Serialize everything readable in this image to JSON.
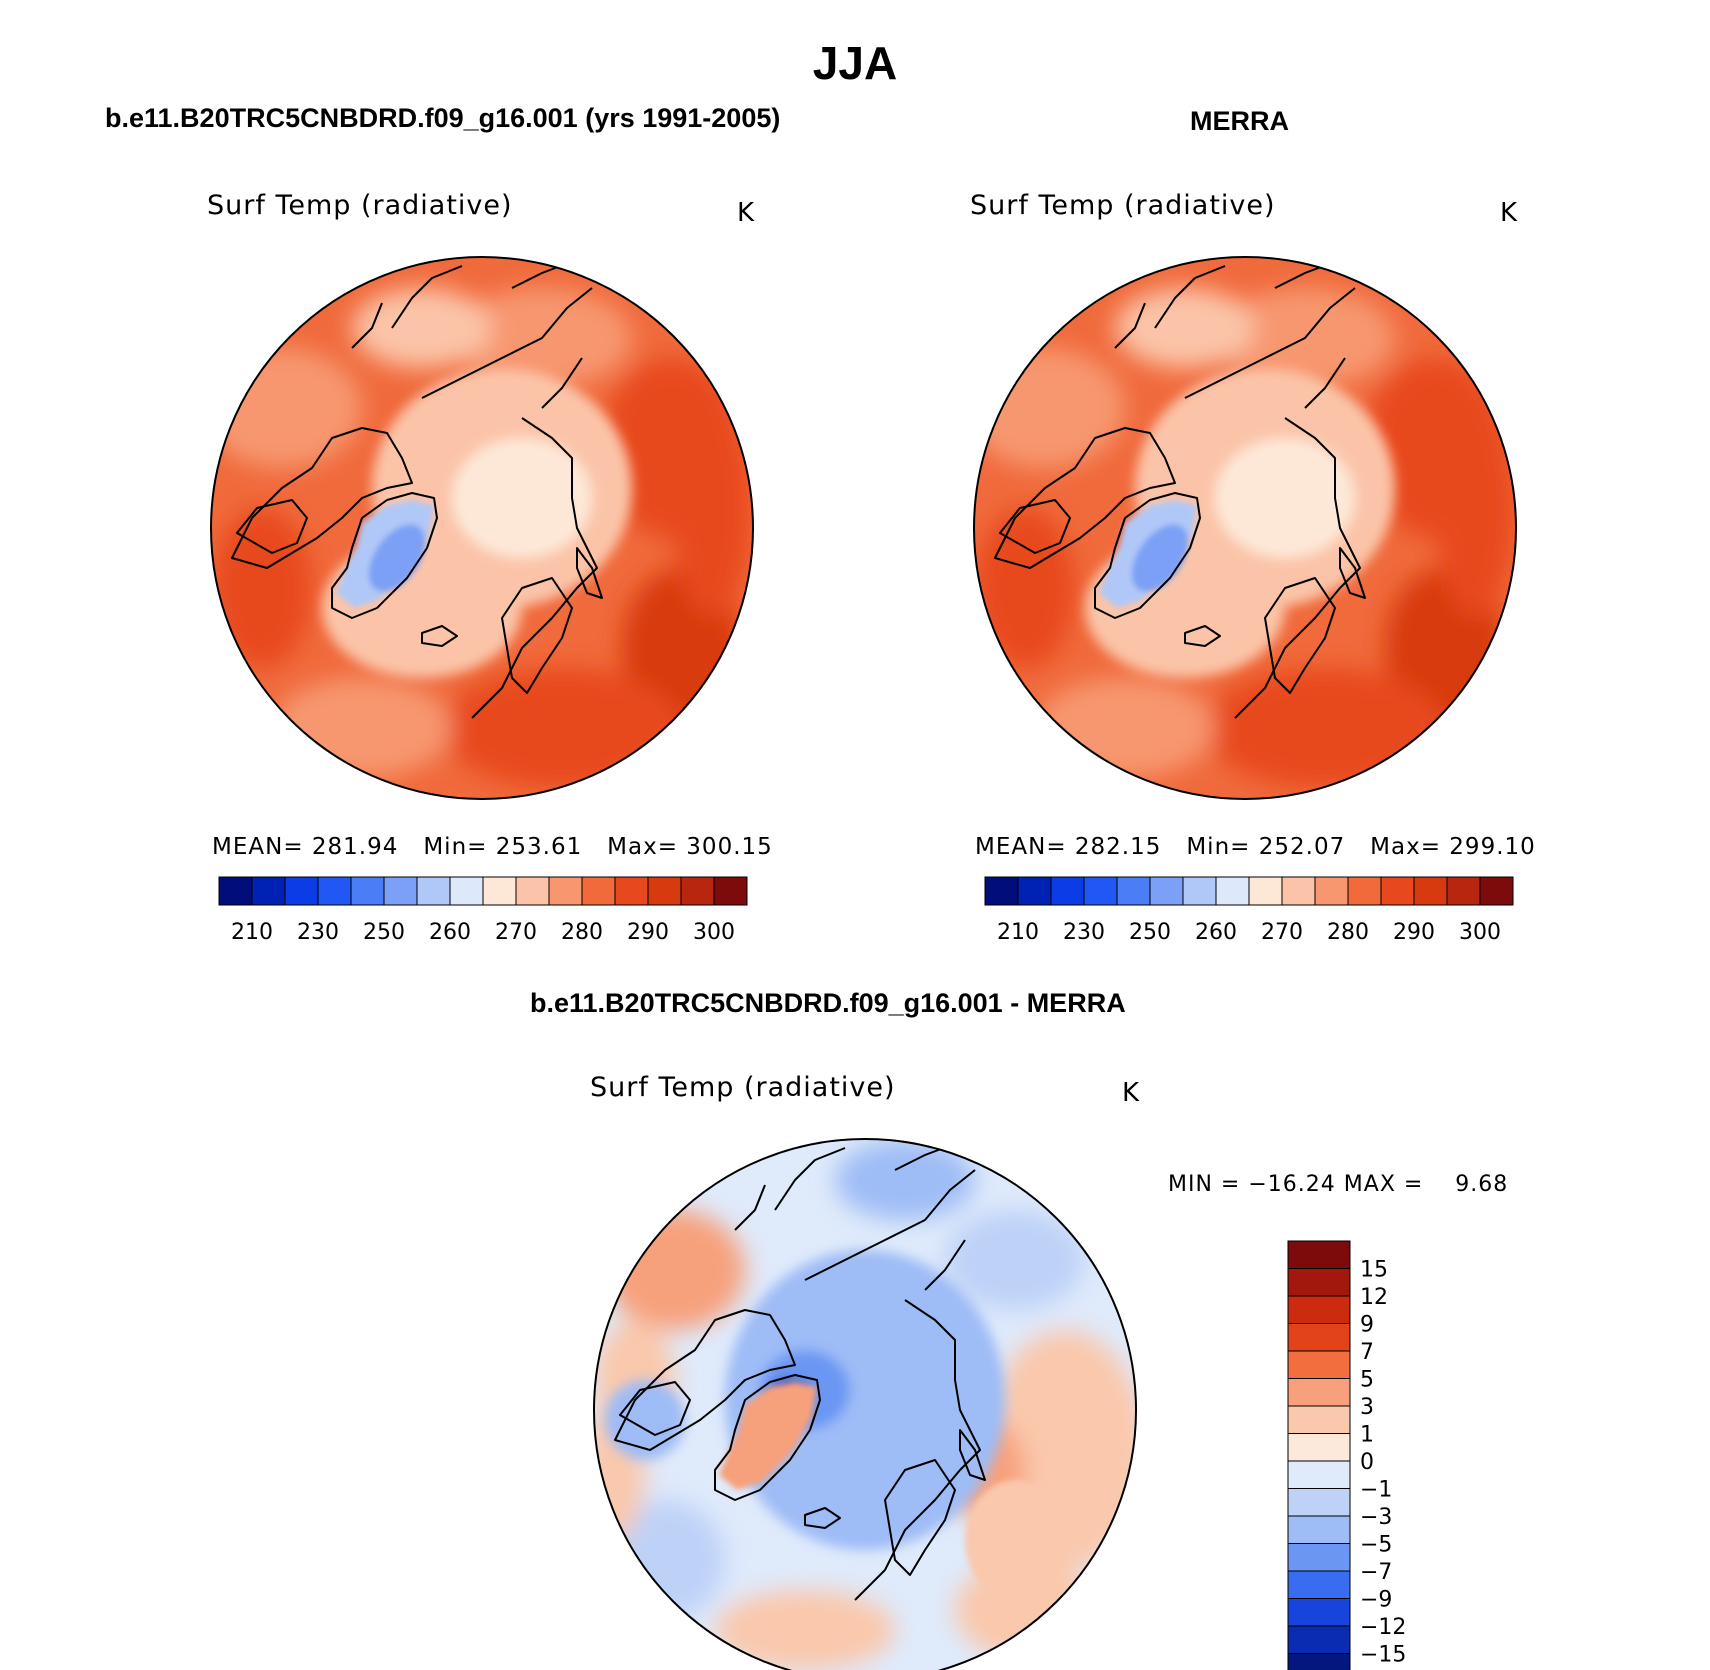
{
  "season": "JJA",
  "panels": [
    {
      "heading": "b.e11.B20TRC5CNBDRD.f09_g16.001 (yrs 1991-2005)",
      "variable": "Surf Temp (radiative)",
      "units": "K",
      "stats": {
        "mean_label": "MEAN=",
        "mean": "281.94",
        "min_label": "Min=",
        "min": "253.61",
        "max_label": "Max=",
        "max": "300.15"
      },
      "colorbar_ticks": [
        "210",
        "230",
        "250",
        "260",
        "270",
        "280",
        "290",
        "300"
      ]
    },
    {
      "heading": "MERRA",
      "variable": "Surf Temp (radiative)",
      "units": "K",
      "stats": {
        "mean_label": "MEAN=",
        "mean": "282.15",
        "min_label": "Min=",
        "min": "252.07",
        "max_label": "Max=",
        "max": "299.10"
      },
      "colorbar_ticks": [
        "210",
        "230",
        "250",
        "260",
        "270",
        "280",
        "290",
        "300"
      ]
    }
  ],
  "diff": {
    "heading": "b.e11.B20TRC5CNBDRD.f09_g16.001 - MERRA",
    "variable": "Surf Temp (radiative)",
    "units": "K",
    "min_label": "MIN =",
    "min": "−16.24",
    "max_label": "MAX =",
    "max": "9.68",
    "colorbar_ticks": [
      "15",
      "12",
      "9",
      "7",
      "5",
      "3",
      "1",
      "0",
      "−1",
      "−3",
      "−5",
      "−7",
      "−9",
      "−12",
      "−15"
    ]
  },
  "colors": {
    "abs_scale": [
      "#000d7a",
      "#0022b4",
      "#0b3ce6",
      "#2158f5",
      "#4a7df6",
      "#7ba0f5",
      "#b0c8f7",
      "#dde9fb",
      "#fde8d8",
      "#fbc4a8",
      "#f7976f",
      "#f06a3c",
      "#e8481d",
      "#d83a10",
      "#b82610",
      "#7d0b0b"
    ],
    "diff_scale": [
      "#7d0b0b",
      "#a2180d",
      "#cc2b0e",
      "#e2431a",
      "#f36e3f",
      "#f7a07b",
      "#fac8ac",
      "#fde9dc",
      "#dfeafb",
      "#bed2f8",
      "#9ebcf6",
      "#6b97f3",
      "#3a6cf1",
      "#1644dc",
      "#0a2cb2",
      "#03177f"
    ]
  },
  "chart_data": [
    {
      "type": "heatmap",
      "projection": "north polar stereographic",
      "title": "b.e11.B20TRC5CNBDRD.f09_g16.001 (yrs 1991-2005)",
      "label": "Surf Temp (radiative)",
      "units": "K",
      "mean": 281.94,
      "min": 253.61,
      "max": 300.15,
      "levels": [
        210,
        230,
        250,
        260,
        270,
        280,
        290,
        300
      ]
    },
    {
      "type": "heatmap",
      "projection": "north polar stereographic",
      "title": "MERRA",
      "label": "Surf Temp (radiative)",
      "units": "K",
      "mean": 282.15,
      "min": 252.07,
      "max": 299.1,
      "levels": [
        210,
        230,
        250,
        260,
        270,
        280,
        290,
        300
      ]
    },
    {
      "type": "heatmap",
      "projection": "north polar stereographic",
      "title": "b.e11.B20TRC5CNBDRD.f09_g16.001 - MERRA",
      "label": "Surf Temp (radiative)",
      "units": "K",
      "min": -16.24,
      "max": 9.68,
      "levels": [
        -15,
        -12,
        -9,
        -7,
        -5,
        -3,
        -1,
        0,
        1,
        3,
        5,
        7,
        9,
        12,
        15
      ]
    }
  ]
}
